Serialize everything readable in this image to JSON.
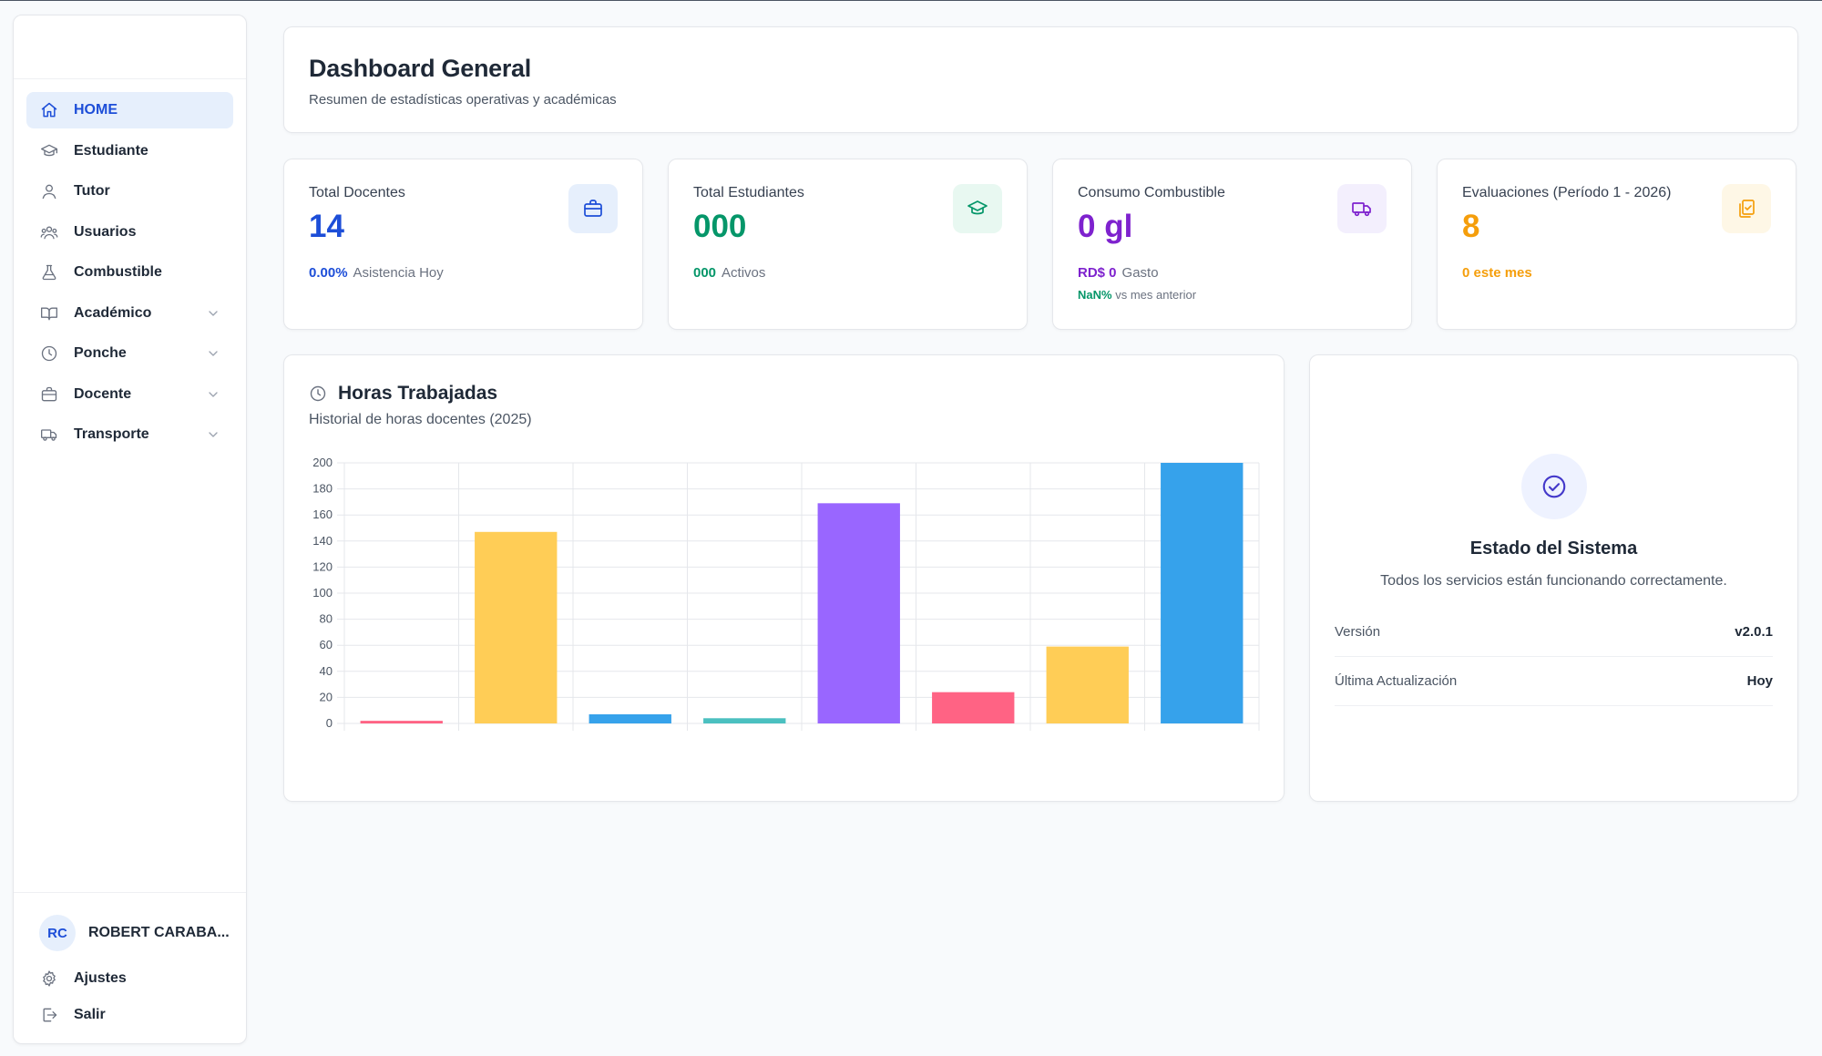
{
  "sidebar": {
    "items": [
      {
        "label": "HOME",
        "icon": "home-icon",
        "active": true
      },
      {
        "label": "Estudiante",
        "icon": "graduation-cap-icon"
      },
      {
        "label": "Tutor",
        "icon": "user-icon"
      },
      {
        "label": "Usuarios",
        "icon": "users-icon"
      },
      {
        "label": "Combustible",
        "icon": "flask-icon"
      },
      {
        "label": "Académico",
        "icon": "book-icon",
        "expandable": true
      },
      {
        "label": "Ponche",
        "icon": "clock-icon",
        "expandable": true
      },
      {
        "label": "Docente",
        "icon": "briefcase-icon",
        "expandable": true
      },
      {
        "label": "Transporte",
        "icon": "truck-icon",
        "expandable": true
      }
    ],
    "user": {
      "initials": "RC",
      "name": "ROBERT CARABA..."
    },
    "settings_label": "Ajustes",
    "logout_label": "Salir"
  },
  "header": {
    "title": "Dashboard General",
    "subtitle": "Resumen de estadísticas operativas y académicas"
  },
  "stats": [
    {
      "label": "Total Docentes",
      "value": "14",
      "foot_value": "0.00%",
      "foot_text": "Asistencia Hoy",
      "color": "#1d4ed8",
      "icon": "briefcase-icon",
      "icon_bg": "#e6effc"
    },
    {
      "label": "Total Estudiantes",
      "value": "000",
      "foot_value": "000",
      "foot_text": "Activos",
      "color": "#059669",
      "icon": "graduation-cap-icon",
      "icon_bg": "#e8f8f1"
    },
    {
      "label": "Consumo Combustible",
      "value": "0 gl",
      "foot_value": "RD$ 0",
      "foot_text": "Gasto",
      "foot2_value": "NaN%",
      "foot2_text": "vs mes anterior",
      "color": "#7e22ce",
      "foot2_color": "#059669",
      "icon": "truck-icon",
      "icon_bg": "#f3effd"
    },
    {
      "label": "Evaluaciones (Período 1 - 2026)",
      "value": "8",
      "foot_value": "0 este mes",
      "foot_text": "",
      "color": "#f59e0b",
      "icon": "clipboard-icon",
      "icon_bg": "#fef7e6"
    }
  ],
  "chart": {
    "title": "Horas Trabajadas",
    "subtitle": "Historial de horas docentes (2025)"
  },
  "chart_data": {
    "type": "bar",
    "categories": [
      "",
      "",
      "",
      "",
      "",
      "",
      "",
      ""
    ],
    "values": [
      2,
      147,
      7,
      4,
      169,
      24,
      59,
      200
    ],
    "colors": [
      "#ff6384",
      "#ffcd56",
      "#36a2eb",
      "#4bc0c0",
      "#9966ff",
      "#ff6384",
      "#ffcd56",
      "#36a2eb"
    ],
    "ylim": [
      0,
      200
    ],
    "yticks": [
      0,
      20,
      40,
      60,
      80,
      100,
      120,
      140,
      160,
      180,
      200
    ],
    "grid": true,
    "title": "",
    "xlabel": "",
    "ylabel": ""
  },
  "status": {
    "title": "Estado del Sistema",
    "description": "Todos los servicios están funcionando correctamente.",
    "rows": [
      {
        "key": "Versión",
        "value": "v2.0.1"
      },
      {
        "key": "Última Actualización",
        "value": "Hoy"
      }
    ]
  }
}
